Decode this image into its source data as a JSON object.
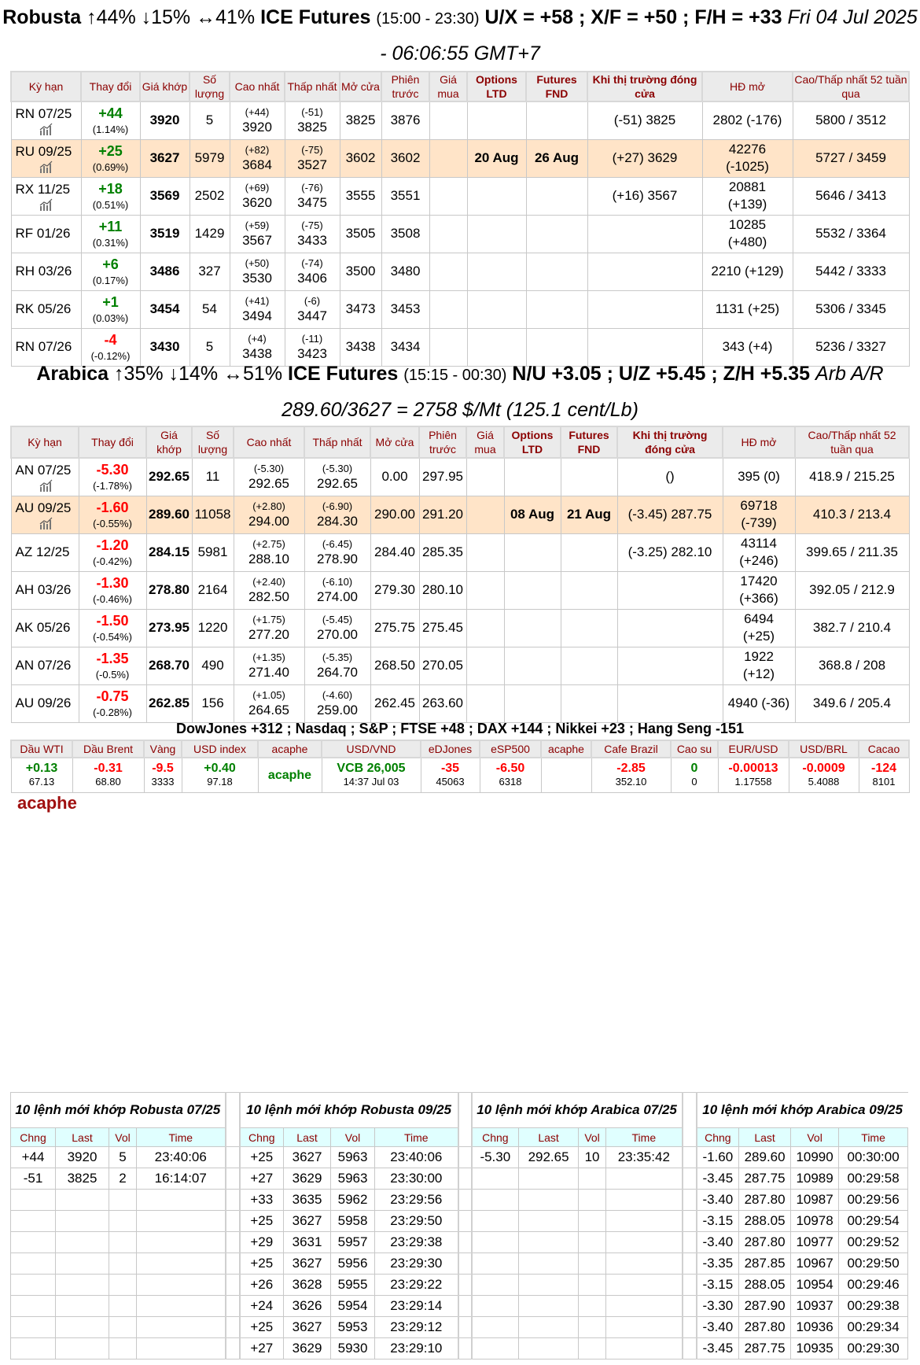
{
  "robusta": {
    "title": {
      "name": "Robusta",
      "stats": "↑44% ↓15% ↔41%",
      "exchange": "ICE Futures",
      "hours": "(15:00 - 23:30)",
      "spreads": "U/X = +58 ; X/F = +50 ; F/H = +33",
      "datetime": "Fri 04 Jul 2025 - 06:06:55 GMT+7"
    },
    "headers": [
      "Kỳ hạn",
      "Thay đổi",
      "Giá khớp",
      "Số lượng",
      "Cao nhất",
      "Thấp nhất",
      "Mở cửa",
      "Phiên trước",
      "Giá mua",
      "Options LTD",
      "Futures FND",
      "Khi thị trường đóng cửa",
      "HĐ mở",
      "Cao/Thấp nhất 52 tuần qua"
    ],
    "rows": [
      {
        "term": "RN 07/25",
        "chart": true,
        "change": "+44",
        "pct": "(1.14%)",
        "dir": "up",
        "last": "3920",
        "vol": "5",
        "high_chg": "(+44)",
        "high": "3920",
        "low_chg": "(-51)",
        "low": "3825",
        "open": "3825",
        "prev": "3876",
        "bid": "",
        "ltd": "",
        "fnd": "",
        "close": "(-51) 3825",
        "oi": "2802 (-176)",
        "oi2": "",
        "range52": "5800 / 3512"
      },
      {
        "term": "RU 09/25",
        "chart": true,
        "highlight": true,
        "change": "+25",
        "pct": "(0.69%)",
        "dir": "up",
        "last": "3627",
        "vol": "5979",
        "high_chg": "(+82)",
        "high": "3684",
        "low_chg": "(-75)",
        "low": "3527",
        "open": "3602",
        "prev": "3602",
        "bid": "",
        "ltd": "20 Aug",
        "fnd": "26 Aug",
        "close": "(+27) 3629",
        "oi": "42276",
        "oi2": "(-1025)",
        "range52": "5727 / 3459"
      },
      {
        "term": "RX 11/25",
        "chart": true,
        "change": "+18",
        "pct": "(0.51%)",
        "dir": "up",
        "last": "3569",
        "vol": "2502",
        "high_chg": "(+69)",
        "high": "3620",
        "low_chg": "(-76)",
        "low": "3475",
        "open": "3555",
        "prev": "3551",
        "bid": "",
        "ltd": "",
        "fnd": "",
        "close": "(+16) 3567",
        "oi": "20881",
        "oi2": "(+139)",
        "range52": "5646 / 3413"
      },
      {
        "term": "RF 01/26",
        "change": "+11",
        "pct": "(0.31%)",
        "dir": "up",
        "last": "3519",
        "vol": "1429",
        "high_chg": "(+59)",
        "high": "3567",
        "low_chg": "(-75)",
        "low": "3433",
        "open": "3505",
        "prev": "3508",
        "bid": "",
        "ltd": "",
        "fnd": "",
        "close": "",
        "oi": "10285",
        "oi2": "(+480)",
        "range52": "5532 / 3364"
      },
      {
        "term": "RH 03/26",
        "change": "+6",
        "pct": "(0.17%)",
        "dir": "up",
        "last": "3486",
        "vol": "327",
        "high_chg": "(+50)",
        "high": "3530",
        "low_chg": "(-74)",
        "low": "3406",
        "open": "3500",
        "prev": "3480",
        "bid": "",
        "ltd": "",
        "fnd": "",
        "close": "",
        "oi": "2210 (+129)",
        "oi2": "",
        "range52": "5442 / 3333"
      },
      {
        "term": "RK 05/26",
        "change": "+1",
        "pct": "(0.03%)",
        "dir": "up",
        "last": "3454",
        "vol": "54",
        "high_chg": "(+41)",
        "high": "3494",
        "low_chg": "(-6)",
        "low": "3447",
        "open": "3473",
        "prev": "3453",
        "bid": "",
        "ltd": "",
        "fnd": "",
        "close": "",
        "oi": "1131 (+25)",
        "oi2": "",
        "range52": "5306 / 3345"
      },
      {
        "term": "RN 07/26",
        "change": "-4",
        "pct": "(-0.12%)",
        "dir": "down",
        "last": "3430",
        "vol": "5",
        "high_chg": "(+4)",
        "high": "3438",
        "low_chg": "(-11)",
        "low": "3423",
        "open": "3438",
        "prev": "3434",
        "bid": "",
        "ltd": "",
        "fnd": "",
        "close": "",
        "oi": "343 (+4)",
        "oi2": "",
        "range52": "5236 / 3327"
      }
    ]
  },
  "arabica": {
    "title": {
      "name": "Arabica",
      "stats": "↑35% ↓14% ↔51%",
      "exchange": "ICE Futures",
      "hours": "(15:15 - 00:30)",
      "spreads": "N/U +3.05 ; U/Z +5.45 ; Z/H +5.35",
      "arb": "Arb A/R",
      "arb_value": "289.60/3627 = 2758 $/Mt (125.1 cent/Lb)"
    },
    "headers": [
      "Kỳ hạn",
      "Thay đổi",
      "Giá khớp",
      "Số lượng",
      "Cao nhất",
      "Thấp nhất",
      "Mở cửa",
      "Phiên trước",
      "Giá mua",
      "Options LTD",
      "Futures FND",
      "Khi thị trường đóng cửa",
      "HĐ mở",
      "Cao/Thấp nhất 52 tuần qua"
    ],
    "rows": [
      {
        "term": "AN 07/25",
        "chart": true,
        "change": "-5.30",
        "pct": "(-1.78%)",
        "dir": "down",
        "last": "292.65",
        "vol": "11",
        "high_chg": "(-5.30)",
        "high": "292.65",
        "low_chg": "(-5.30)",
        "low": "292.65",
        "open": "0.00",
        "prev": "297.95",
        "bid": "",
        "ltd": "",
        "fnd": "",
        "close": "()",
        "oi": "395 (0)",
        "oi2": "",
        "range52": "418.9 / 215.25"
      },
      {
        "term": "AU 09/25",
        "chart": true,
        "highlight": true,
        "change": "-1.60",
        "pct": "(-0.55%)",
        "dir": "down",
        "last": "289.60",
        "vol": "11058",
        "high_chg": "(+2.80)",
        "high": "294.00",
        "low_chg": "(-6.90)",
        "low": "284.30",
        "open": "290.00",
        "prev": "291.20",
        "bid": "",
        "ltd": "08 Aug",
        "fnd": "21 Aug",
        "close": "(-3.45) 287.75",
        "oi": "69718",
        "oi2": "(-739)",
        "range52": "410.3 / 213.4"
      },
      {
        "term": "AZ 12/25",
        "change": "-1.20",
        "pct": "(-0.42%)",
        "dir": "down",
        "last": "284.15",
        "vol": "5981",
        "high_chg": "(+2.75)",
        "high": "288.10",
        "low_chg": "(-6.45)",
        "low": "278.90",
        "open": "284.40",
        "prev": "285.35",
        "bid": "",
        "ltd": "",
        "fnd": "",
        "close": "(-3.25) 282.10",
        "oi": "43114",
        "oi2": "(+246)",
        "range52": "399.65 / 211.35"
      },
      {
        "term": "AH 03/26",
        "change": "-1.30",
        "pct": "(-0.46%)",
        "dir": "down",
        "last": "278.80",
        "vol": "2164",
        "high_chg": "(+2.40)",
        "high": "282.50",
        "low_chg": "(-6.10)",
        "low": "274.00",
        "open": "279.30",
        "prev": "280.10",
        "bid": "",
        "ltd": "",
        "fnd": "",
        "close": "",
        "oi": "17420",
        "oi2": "(+366)",
        "range52": "392.05 / 212.9"
      },
      {
        "term": "AK 05/26",
        "change": "-1.50",
        "pct": "(-0.54%)",
        "dir": "down",
        "last": "273.95",
        "vol": "1220",
        "high_chg": "(+1.75)",
        "high": "277.20",
        "low_chg": "(-5.45)",
        "low": "270.00",
        "open": "275.75",
        "prev": "275.45",
        "bid": "",
        "ltd": "",
        "fnd": "",
        "close": "",
        "oi": "6494",
        "oi2": "(+25)",
        "range52": "382.7 / 210.4"
      },
      {
        "term": "AN 07/26",
        "change": "-1.35",
        "pct": "(-0.5%)",
        "dir": "down",
        "last": "268.70",
        "vol": "490",
        "high_chg": "(+1.35)",
        "high": "271.40",
        "low_chg": "(-5.35)",
        "low": "264.70",
        "open": "268.50",
        "prev": "270.05",
        "bid": "",
        "ltd": "",
        "fnd": "",
        "close": "",
        "oi": "1922",
        "oi2": "(+12)",
        "range52": "368.8 / 208"
      },
      {
        "term": "AU 09/26",
        "change": "-0.75",
        "pct": "(-0.28%)",
        "dir": "down",
        "last": "262.85",
        "vol": "156",
        "high_chg": "(+1.05)",
        "high": "264.65",
        "low_chg": "(-4.60)",
        "low": "259.00",
        "open": "262.45",
        "prev": "263.60",
        "bid": "",
        "ltd": "",
        "fnd": "",
        "close": "",
        "oi": "4940 (-36)",
        "oi2": "",
        "range52": "349.6 / 205.4"
      }
    ]
  },
  "indices": "DowJones +312 ; Nasdaq ; S&P ; FTSE +48 ; DAX +144 ; Nikkei +23 ; Hang Seng -151",
  "markets": [
    {
      "label": "Dầu WTI",
      "value": "+0.13",
      "dir": "up",
      "sub": "67.13"
    },
    {
      "label": "Dầu Brent",
      "value": "-0.31",
      "dir": "down",
      "sub": "68.80"
    },
    {
      "label": "Vàng",
      "value": "-9.5",
      "dir": "down",
      "sub": "3333"
    },
    {
      "label": "USD index",
      "value": "+0.40",
      "dir": "up",
      "sub": "97.18"
    },
    {
      "label": "acaphe",
      "value": "acaphe",
      "dir": "up",
      "sub": ""
    },
    {
      "label": "USD/VND",
      "value": "VCB 26,005",
      "dir": "up",
      "sub": "14:37 Jul 03"
    },
    {
      "label": "eDJones",
      "value": "-35",
      "dir": "down",
      "sub": "45063"
    },
    {
      "label": "eSP500",
      "value": "-6.50",
      "dir": "down",
      "sub": "6318"
    },
    {
      "label": "acaphe",
      "value": "",
      "dir": "up",
      "sub": ""
    },
    {
      "label": "Cafe Brazil",
      "value": "-2.85",
      "dir": "down",
      "sub": "352.10"
    },
    {
      "label": "Cao su",
      "value": "0",
      "dir": "up",
      "sub": "0"
    },
    {
      "label": "EUR/USD",
      "value": "-0.00013",
      "dir": "down",
      "sub": "1.17558"
    },
    {
      "label": "USD/BRL",
      "value": "-0.0009",
      "dir": "down",
      "sub": "5.4088"
    },
    {
      "label": "Cacao",
      "value": "-124",
      "dir": "down",
      "sub": "8101"
    }
  ],
  "logo": "acaphe",
  "colors": {
    "up": "#008000",
    "down": "#ff0000",
    "header_text": "#8b0000",
    "highlight": "#ffe4c8",
    "trade_header_bg": "#e0ffff"
  },
  "trades": {
    "columns": [
      "Chng",
      "Last",
      "Vol",
      "Time"
    ],
    "groups": [
      {
        "title": "10 lệnh mới khớp Robusta 07/25",
        "rows": [
          [
            "+44",
            "3920",
            "5",
            "23:40:06"
          ],
          [
            "-51",
            "3825",
            "2",
            "16:14:07"
          ]
        ]
      },
      {
        "title": "10 lệnh mới khớp Robusta 09/25",
        "rows": [
          [
            "+25",
            "3627",
            "5963",
            "23:40:06"
          ],
          [
            "+27",
            "3629",
            "5963",
            "23:30:00"
          ],
          [
            "+33",
            "3635",
            "5962",
            "23:29:56"
          ],
          [
            "+25",
            "3627",
            "5958",
            "23:29:50"
          ],
          [
            "+29",
            "3631",
            "5957",
            "23:29:38"
          ],
          [
            "+25",
            "3627",
            "5956",
            "23:29:30"
          ],
          [
            "+26",
            "3628",
            "5955",
            "23:29:22"
          ],
          [
            "+24",
            "3626",
            "5954",
            "23:29:14"
          ],
          [
            "+25",
            "3627",
            "5953",
            "23:29:12"
          ],
          [
            "+27",
            "3629",
            "5930",
            "23:29:10"
          ]
        ]
      },
      {
        "title": "10 lệnh mới khớp Arabica 07/25",
        "rows": [
          [
            "-5.30",
            "292.65",
            "10",
            "23:35:42"
          ]
        ]
      },
      {
        "title": "10 lệnh mới khớp Arabica 09/25",
        "rows": [
          [
            "-1.60",
            "289.60",
            "10990",
            "00:30:00"
          ],
          [
            "-3.45",
            "287.75",
            "10989",
            "00:29:58"
          ],
          [
            "-3.40",
            "287.80",
            "10987",
            "00:29:56"
          ],
          [
            "-3.15",
            "288.05",
            "10978",
            "00:29:54"
          ],
          [
            "-3.40",
            "287.80",
            "10977",
            "00:29:52"
          ],
          [
            "-3.35",
            "287.85",
            "10967",
            "00:29:50"
          ],
          [
            "-3.15",
            "288.05",
            "10954",
            "00:29:46"
          ],
          [
            "-3.30",
            "287.90",
            "10937",
            "00:29:38"
          ],
          [
            "-3.40",
            "287.80",
            "10936",
            "00:29:34"
          ],
          [
            "-3.45",
            "287.75",
            "10935",
            "00:29:30"
          ]
        ]
      }
    ]
  }
}
